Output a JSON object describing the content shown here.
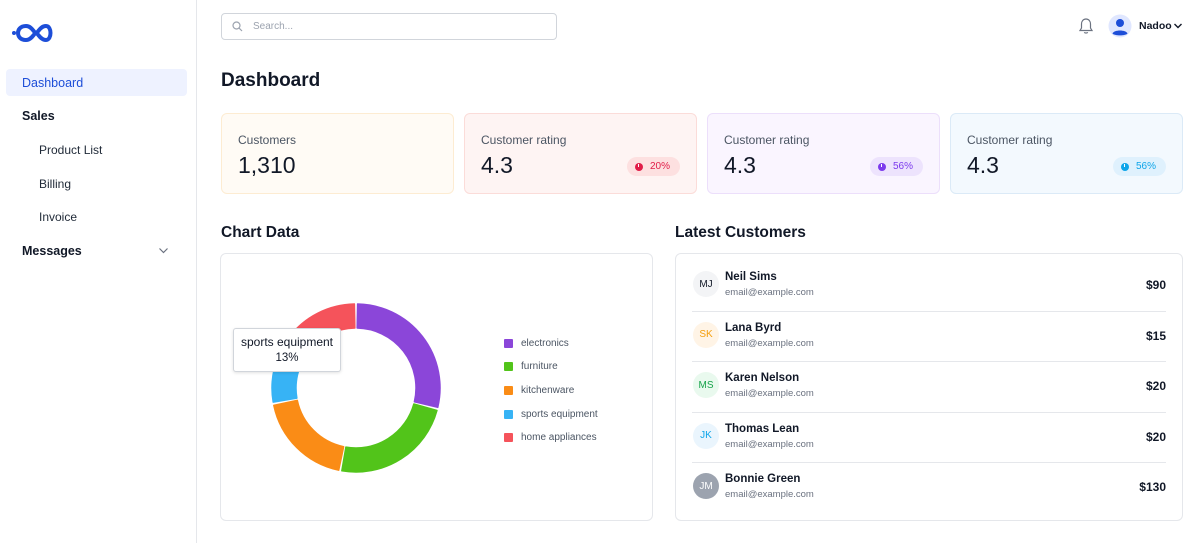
{
  "colors": {
    "accent": "#1d4ed8",
    "card_customers_bg": "#fffbf5",
    "card_rating_red_bg": "#fef3f2",
    "card_rating_purple_bg": "#faf5ff",
    "card_rating_blue_bg": "#f3f9fe",
    "electronics": "#8b46d9",
    "furniture": "#52c41a",
    "kitchenware": "#fa8c16",
    "sports_equipment": "#37b3f5",
    "home_appliances": "#f5535b"
  },
  "sidebar": {
    "logo_icon": "infinity-logo-icon",
    "items": [
      {
        "label": "Dashboard"
      },
      {
        "label": "Sales"
      },
      {
        "label": "Product List"
      },
      {
        "label": "Billing"
      },
      {
        "label": "Invoice"
      },
      {
        "label": "Messages",
        "icon": "chevron-down-icon"
      }
    ]
  },
  "header": {
    "search_placeholder": "Search...",
    "search_icon": "search-icon",
    "bell_icon": "bell-icon",
    "user_name": "Nadoo",
    "user_icon": "user-avatar-icon"
  },
  "page_title": "Dashboard",
  "stats": [
    {
      "label": "Customers",
      "value": "1,310"
    },
    {
      "label": "Customer rating",
      "value": "4.3",
      "badge": "20%",
      "badge_color": "#e11d48"
    },
    {
      "label": "Customer rating",
      "value": "4.3",
      "badge": "56%",
      "badge_color": "#7c3aed"
    },
    {
      "label": "Customer rating",
      "value": "4.3",
      "badge": "56%",
      "badge_color": "#0ea5e9"
    }
  ],
  "chart_section_title": "Chart Data",
  "tooltip": {
    "label": "sports equipment",
    "value": "13%"
  },
  "chart_data": {
    "type": "pie",
    "donut": true,
    "categories": [
      "electronics",
      "furniture",
      "kitchenware",
      "sports equipment",
      "home appliances"
    ],
    "values": [
      29,
      24,
      19,
      13,
      15
    ],
    "colors": [
      "#8b46d9",
      "#52c41a",
      "#fa8c16",
      "#37b3f5",
      "#f5535b"
    ],
    "legend_position": "right"
  },
  "customers_section_title": "Latest Customers",
  "customers": [
    {
      "initials": "MJ",
      "name": "Neil Sims",
      "email": "email@example.com",
      "amount": "$90",
      "avatar_bg": "#f3f4f6",
      "avatar_fg": "#111827"
    },
    {
      "initials": "SK",
      "name": "Lana Byrd",
      "email": "email@example.com",
      "amount": "$15",
      "avatar_bg": "#fff4e6",
      "avatar_fg": "#f59e0b"
    },
    {
      "initials": "MS",
      "name": "Karen Nelson",
      "email": "email@example.com",
      "amount": "$20",
      "avatar_bg": "#e9f9ee",
      "avatar_fg": "#16a34a"
    },
    {
      "initials": "JK",
      "name": "Thomas Lean",
      "email": "email@example.com",
      "amount": "$20",
      "avatar_bg": "#eaf5fd",
      "avatar_fg": "#0ea5e9"
    },
    {
      "initials": "JM",
      "name": "Bonnie Green",
      "email": "email@example.com",
      "amount": "$130",
      "avatar_bg": "#9ca3af",
      "avatar_fg": "#ffffff"
    }
  ]
}
